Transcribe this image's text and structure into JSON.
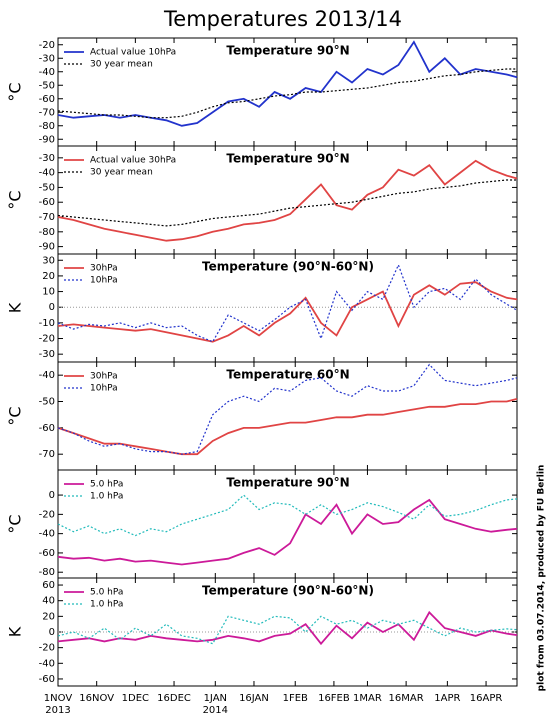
{
  "title": "Temperatures 2013/14",
  "footnote": "plot from 03.07.2014, produced by FU Berlin",
  "chart_data": [
    {
      "type": "line",
      "title": "Temperature 90°N",
      "ylabel": "°C",
      "x": [
        0,
        6,
        12,
        18,
        24,
        30,
        36,
        42,
        48,
        54,
        60,
        66,
        72,
        78,
        84,
        90,
        96,
        102,
        108,
        114,
        120,
        126,
        132,
        138,
        144,
        150,
        156,
        162,
        168,
        174,
        178
      ],
      "xlim": [
        0,
        178
      ],
      "ylim": [
        -95,
        -15
      ],
      "yticks": [
        -20,
        -30,
        -40,
        -50,
        -60,
        -70,
        -80,
        -90
      ],
      "zero_line": false,
      "series": [
        {
          "name": "Actual value 10hPa",
          "color": "#2233cc",
          "dash": false,
          "values": [
            -72,
            -74,
            -73,
            -72,
            -74,
            -72,
            -74,
            -76,
            -80,
            -78,
            -70,
            -62,
            -60,
            -66,
            -55,
            -60,
            -52,
            -55,
            -40,
            -48,
            -38,
            -42,
            -35,
            -18,
            -40,
            -30,
            -42,
            -38,
            -40,
            -42,
            -44
          ]
        },
        {
          "name": "30 year mean",
          "color": "#000000",
          "dash": true,
          "values": [
            -69,
            -70,
            -71,
            -72,
            -72,
            -73,
            -74,
            -74,
            -73,
            -70,
            -66,
            -63,
            -62,
            -60,
            -58,
            -57,
            -55,
            -55,
            -54,
            -53,
            -52,
            -50,
            -48,
            -47,
            -45,
            -43,
            -42,
            -40,
            -39,
            -38,
            -38
          ]
        }
      ]
    },
    {
      "type": "line",
      "title": "Temperature 90°N",
      "ylabel": "°C",
      "x": [
        0,
        6,
        12,
        18,
        24,
        30,
        36,
        42,
        48,
        54,
        60,
        66,
        72,
        78,
        84,
        90,
        96,
        102,
        108,
        114,
        120,
        126,
        132,
        138,
        144,
        150,
        156,
        162,
        168,
        174,
        178
      ],
      "xlim": [
        0,
        178
      ],
      "ylim": [
        -95,
        -22
      ],
      "yticks": [
        -30,
        -40,
        -50,
        -60,
        -70,
        -80,
        -90
      ],
      "zero_line": false,
      "series": [
        {
          "name": "Actual value 30hPa",
          "color": "#e04444",
          "dash": false,
          "values": [
            -70,
            -72,
            -75,
            -78,
            -80,
            -82,
            -84,
            -86,
            -85,
            -83,
            -80,
            -78,
            -75,
            -74,
            -72,
            -68,
            -58,
            -48,
            -62,
            -65,
            -55,
            -50,
            -38,
            -42,
            -35,
            -48,
            -40,
            -32,
            -38,
            -42,
            -44
          ]
        },
        {
          "name": "30 year mean",
          "color": "#000000",
          "dash": true,
          "values": [
            -69,
            -70,
            -71,
            -72,
            -73,
            -74,
            -75,
            -76,
            -75,
            -73,
            -71,
            -70,
            -69,
            -68,
            -66,
            -64,
            -63,
            -62,
            -61,
            -60,
            -58,
            -56,
            -54,
            -53,
            -51,
            -50,
            -49,
            -47,
            -46,
            -45,
            -45
          ]
        }
      ]
    },
    {
      "type": "line",
      "title": "Temperature (90°N-60°N)",
      "ylabel": "K",
      "x": [
        0,
        6,
        12,
        18,
        24,
        30,
        36,
        42,
        48,
        54,
        60,
        66,
        72,
        78,
        84,
        90,
        96,
        102,
        108,
        114,
        120,
        126,
        132,
        138,
        144,
        150,
        156,
        162,
        168,
        174,
        178
      ],
      "xlim": [
        0,
        178
      ],
      "ylim": [
        -35,
        34
      ],
      "yticks": [
        30,
        20,
        10,
        0,
        -10,
        -20,
        -30
      ],
      "zero_line": true,
      "series": [
        {
          "name": "30hPa",
          "color": "#e04444",
          "dash": false,
          "values": [
            -12,
            -11,
            -12,
            -13,
            -14,
            -15,
            -14,
            -16,
            -18,
            -20,
            -22,
            -18,
            -12,
            -18,
            -10,
            -4,
            6,
            -10,
            -18,
            0,
            5,
            10,
            -12,
            8,
            14,
            8,
            15,
            16,
            10,
            6,
            5
          ]
        },
        {
          "name": "10hPa",
          "color": "#2233cc",
          "dash": true,
          "values": [
            -10,
            -14,
            -11,
            -12,
            -10,
            -13,
            -10,
            -13,
            -12,
            -18,
            -22,
            -5,
            -10,
            -15,
            -8,
            0,
            5,
            -20,
            10,
            -2,
            10,
            5,
            27,
            0,
            10,
            12,
            5,
            18,
            8,
            2,
            -2
          ]
        }
      ]
    },
    {
      "type": "line",
      "title": "Temperature 60°N",
      "ylabel": "°C",
      "x": [
        0,
        6,
        12,
        18,
        24,
        30,
        36,
        42,
        48,
        54,
        60,
        66,
        72,
        78,
        84,
        90,
        96,
        102,
        108,
        114,
        120,
        126,
        132,
        138,
        144,
        150,
        156,
        162,
        168,
        174,
        178
      ],
      "xlim": [
        0,
        178
      ],
      "ylim": [
        -76,
        -35
      ],
      "yticks": [
        -40,
        -50,
        -60,
        -70
      ],
      "zero_line": false,
      "series": [
        {
          "name": "30hPa",
          "color": "#e04444",
          "dash": false,
          "values": [
            -60,
            -62,
            -64,
            -66,
            -66,
            -67,
            -68,
            -69,
            -70,
            -70,
            -65,
            -62,
            -60,
            -60,
            -59,
            -58,
            -58,
            -57,
            -56,
            -56,
            -55,
            -55,
            -54,
            -53,
            -52,
            -52,
            -51,
            -51,
            -50,
            -50,
            -49
          ]
        },
        {
          "name": "10hPa",
          "color": "#2233cc",
          "dash": true,
          "values": [
            -60,
            -62,
            -65,
            -67,
            -66,
            -68,
            -69,
            -69,
            -70,
            -69,
            -55,
            -50,
            -48,
            -50,
            -45,
            -46,
            -42,
            -41,
            -46,
            -48,
            -44,
            -46,
            -46,
            -44,
            -36,
            -42,
            -43,
            -44,
            -43,
            -42,
            -41
          ]
        }
      ]
    },
    {
      "type": "line",
      "title": "Temperature 90°N",
      "ylabel": "°C",
      "x": [
        0,
        6,
        12,
        18,
        24,
        30,
        36,
        42,
        48,
        54,
        60,
        66,
        72,
        78,
        84,
        90,
        96,
        102,
        108,
        114,
        120,
        126,
        132,
        138,
        144,
        150,
        156,
        162,
        168,
        174,
        178
      ],
      "xlim": [
        0,
        178
      ],
      "ylim": [
        -86,
        26
      ],
      "yticks": [
        0,
        -20,
        -40,
        -60,
        -80
      ],
      "zero_line": false,
      "series": [
        {
          "name": "5.0 hPa",
          "color": "#cc1a99",
          "dash": false,
          "values": [
            -64,
            -66,
            -65,
            -68,
            -66,
            -69,
            -68,
            -70,
            -72,
            -70,
            -68,
            -66,
            -60,
            -55,
            -62,
            -50,
            -20,
            -30,
            -10,
            -40,
            -20,
            -30,
            -28,
            -15,
            -5,
            -25,
            -30,
            -35,
            -38,
            -36,
            -35
          ]
        },
        {
          "name": "1.0 hPa",
          "color": "#22bbbb",
          "dash": true,
          "values": [
            -30,
            -38,
            -32,
            -40,
            -35,
            -42,
            -35,
            -38,
            -30,
            -25,
            -20,
            -15,
            0,
            -15,
            -8,
            -10,
            -20,
            -10,
            -20,
            -15,
            -8,
            -12,
            -18,
            -25,
            -10,
            -22,
            -20,
            -16,
            -10,
            -5,
            -4
          ]
        }
      ]
    },
    {
      "type": "line",
      "title": "Temperature (90°N-60°N)",
      "ylabel": "K",
      "x": [
        0,
        6,
        12,
        18,
        24,
        30,
        36,
        42,
        48,
        54,
        60,
        66,
        72,
        78,
        84,
        90,
        96,
        102,
        108,
        114,
        120,
        126,
        132,
        138,
        144,
        150,
        156,
        162,
        168,
        174,
        178
      ],
      "xlim": [
        0,
        178
      ],
      "ylim": [
        -69,
        69
      ],
      "yticks": [
        60,
        40,
        20,
        0,
        -20,
        -40,
        -60
      ],
      "zero_line": true,
      "xticks": [
        {
          "value": 0,
          "label": "1NOV"
        },
        {
          "value": 15,
          "label": "16NOV"
        },
        {
          "value": 30,
          "label": "1DEC"
        },
        {
          "value": 45,
          "label": "16DEC"
        },
        {
          "value": 61,
          "label": "1JAN"
        },
        {
          "value": 76,
          "label": "16JAN"
        },
        {
          "value": 92,
          "label": "1FEB"
        },
        {
          "value": 107,
          "label": "16FEB"
        },
        {
          "value": 120,
          "label": "1MAR"
        },
        {
          "value": 135,
          "label": "16MAR"
        },
        {
          "value": 151,
          "label": "1APR"
        },
        {
          "value": 166,
          "label": "16APR"
        }
      ],
      "year_labels": [
        {
          "value": 0,
          "label": "2013"
        },
        {
          "value": 61,
          "label": "2014"
        }
      ],
      "series": [
        {
          "name": "5.0 hPa",
          "color": "#cc1a99",
          "dash": false,
          "values": [
            -12,
            -10,
            -8,
            -12,
            -8,
            -10,
            -5,
            -8,
            -10,
            -12,
            -10,
            -5,
            -8,
            -12,
            -5,
            -2,
            10,
            -15,
            8,
            -8,
            12,
            0,
            10,
            -10,
            25,
            5,
            0,
            -5,
            2,
            -2,
            -4
          ]
        },
        {
          "name": "1.0 hPa",
          "color": "#22bbbb",
          "dash": true,
          "values": [
            -5,
            0,
            -8,
            5,
            -10,
            5,
            -5,
            10,
            -5,
            -8,
            -15,
            20,
            15,
            10,
            20,
            18,
            0,
            20,
            10,
            15,
            5,
            15,
            10,
            15,
            5,
            -5,
            5,
            0,
            2,
            4,
            3
          ]
        }
      ]
    }
  ]
}
